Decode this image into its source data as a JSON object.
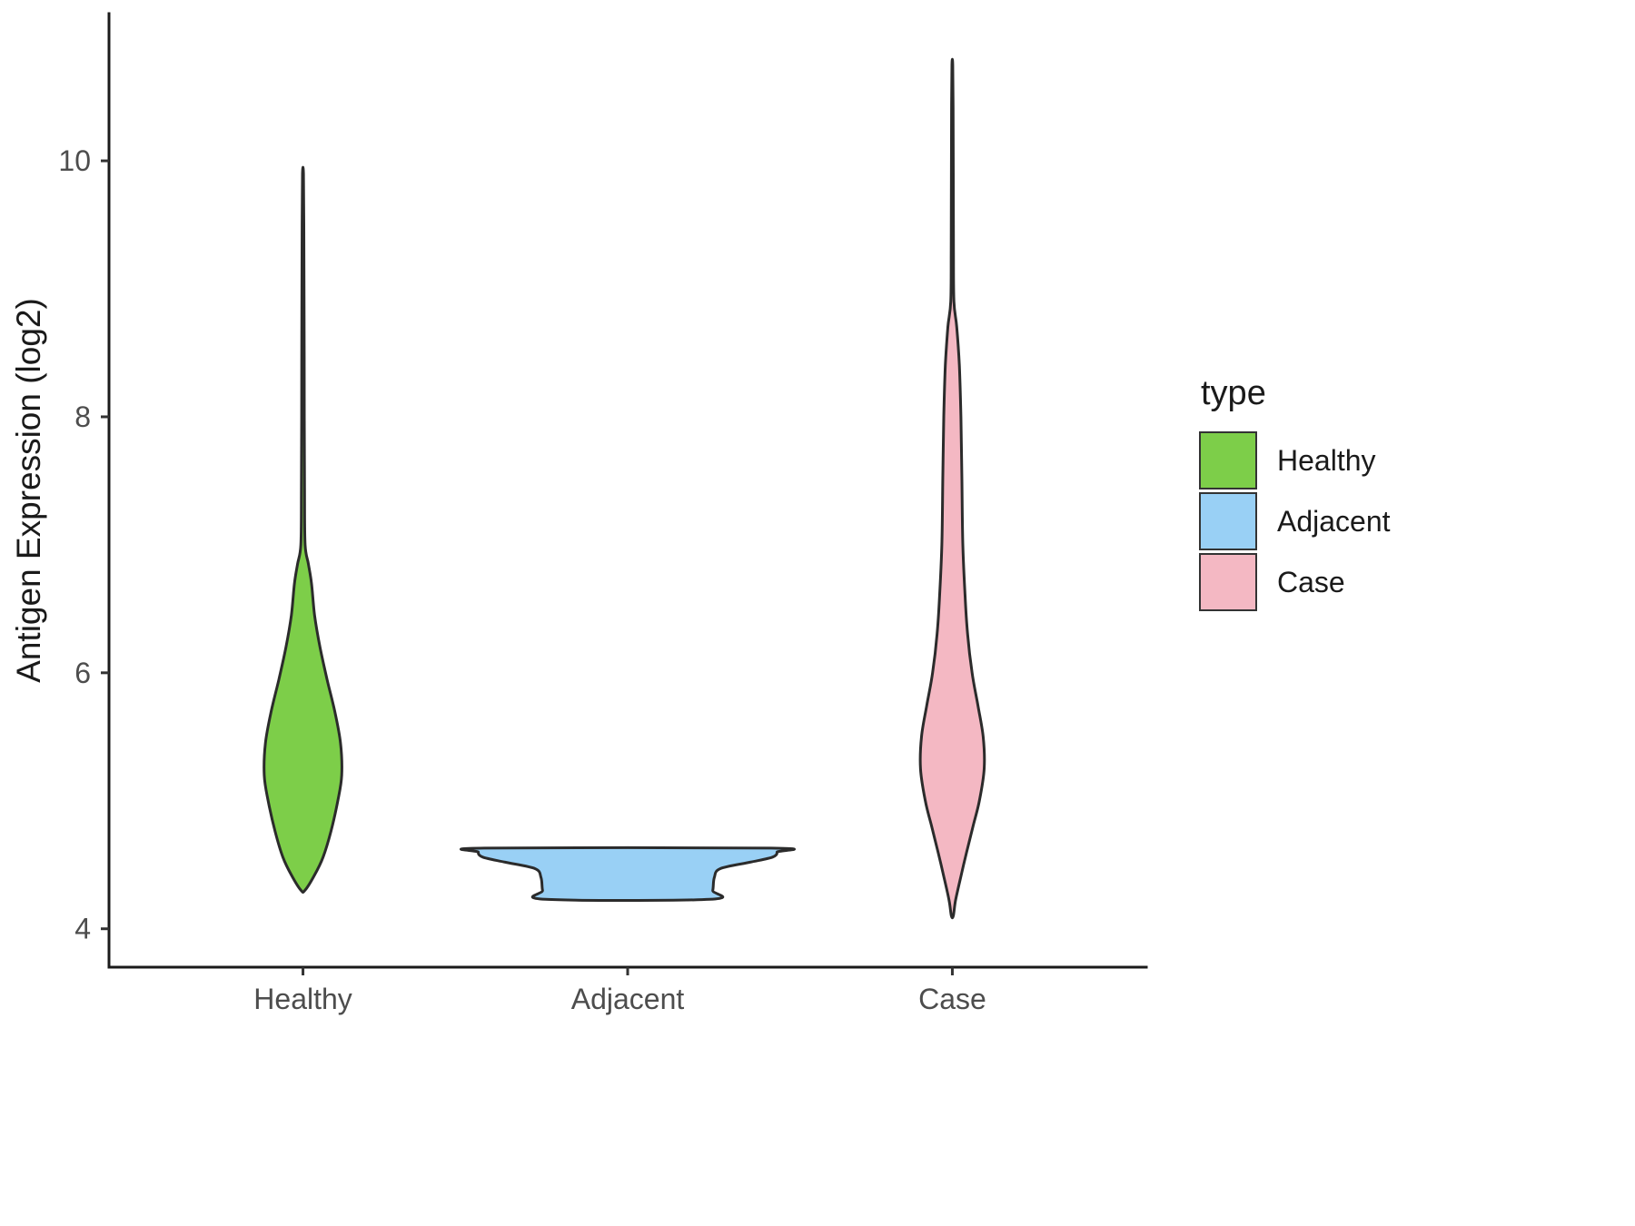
{
  "chart_data": {
    "type": "violin",
    "title": "",
    "xlabel": "",
    "ylabel": "Antigen Expression (log2)",
    "categories": [
      "Healthy",
      "Adjacent",
      "Case"
    ],
    "y_ticks": [
      4,
      6,
      8,
      10
    ],
    "ylim": [
      3.7,
      11.15
    ],
    "grid": "off",
    "legend": {
      "title": "type",
      "position": "right",
      "entries": [
        {
          "label": "Healthy",
          "color": "#7DCE49"
        },
        {
          "label": "Adjacent",
          "color": "#99D0F5"
        },
        {
          "label": "Case",
          "color": "#F4B8C3"
        }
      ]
    },
    "violins": [
      {
        "name": "Healthy",
        "category": "Healthy",
        "fill": "#7DCE49",
        "stroke": "#2b2b2b",
        "y_min": 4.3,
        "y_max": 9.9,
        "max_halfwidth_frac": 0.112,
        "profile": [
          [
            4.3,
            0.05
          ],
          [
            4.42,
            0.3
          ],
          [
            4.56,
            0.52
          ],
          [
            4.76,
            0.72
          ],
          [
            5.0,
            0.9
          ],
          [
            5.2,
            1.0
          ],
          [
            5.45,
            0.97
          ],
          [
            5.7,
            0.82
          ],
          [
            5.95,
            0.62
          ],
          [
            6.2,
            0.44
          ],
          [
            6.45,
            0.3
          ],
          [
            6.7,
            0.22
          ],
          [
            6.85,
            0.14
          ],
          [
            7.0,
            0.055
          ],
          [
            7.4,
            0.04
          ],
          [
            8.0,
            0.035
          ],
          [
            8.8,
            0.03
          ],
          [
            9.5,
            0.022
          ],
          [
            9.9,
            0.012
          ]
        ]
      },
      {
        "name": "Adjacent",
        "category": "Adjacent",
        "fill": "#99D0F5",
        "stroke": "#2b2b2b",
        "y_min": 4.23,
        "y_max": 4.63,
        "max_halfwidth_frac": 0.432,
        "profile": [
          [
            4.23,
            0.55
          ],
          [
            4.3,
            0.57
          ],
          [
            4.4,
            0.58
          ],
          [
            4.47,
            0.62
          ],
          [
            4.52,
            0.82
          ],
          [
            4.56,
            0.97
          ],
          [
            4.6,
            1.0
          ],
          [
            4.63,
            0.96
          ]
        ]
      },
      {
        "name": "Case",
        "category": "Case",
        "fill": "#F4B8C3",
        "stroke": "#2b2b2b",
        "y_min": 4.1,
        "y_max": 10.75,
        "max_halfwidth_frac": 0.092,
        "profile": [
          [
            4.1,
            0.03
          ],
          [
            4.22,
            0.1
          ],
          [
            4.4,
            0.26
          ],
          [
            4.6,
            0.45
          ],
          [
            4.8,
            0.65
          ],
          [
            5.0,
            0.85
          ],
          [
            5.25,
            1.0
          ],
          [
            5.5,
            0.97
          ],
          [
            5.75,
            0.8
          ],
          [
            6.0,
            0.62
          ],
          [
            6.3,
            0.48
          ],
          [
            6.6,
            0.4
          ],
          [
            7.0,
            0.33
          ],
          [
            7.5,
            0.3
          ],
          [
            8.0,
            0.27
          ],
          [
            8.4,
            0.22
          ],
          [
            8.7,
            0.14
          ],
          [
            8.9,
            0.05
          ],
          [
            9.3,
            0.035
          ],
          [
            9.9,
            0.03
          ],
          [
            10.4,
            0.025
          ],
          [
            10.75,
            0.012
          ]
        ]
      }
    ]
  }
}
